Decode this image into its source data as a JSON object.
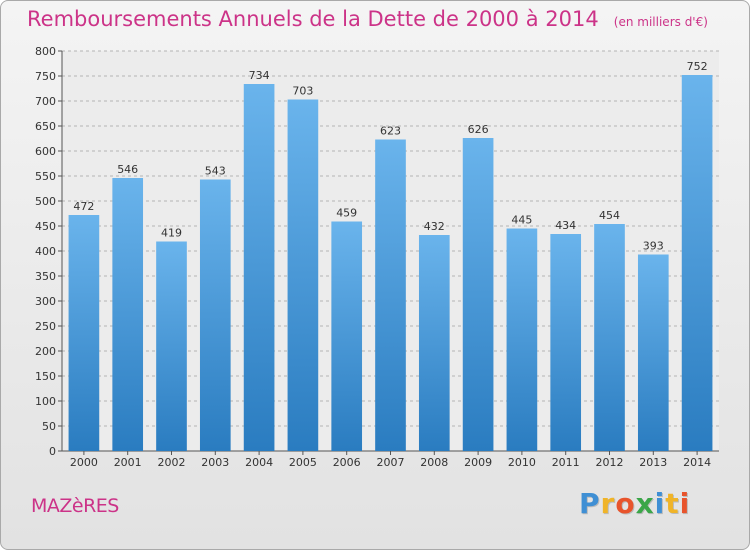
{
  "chart_data": {
    "type": "bar",
    "title": "Remboursements Annuels de la Dette de 2000 à 2014",
    "subtitle": "(en milliers d'€)",
    "categories": [
      "2000",
      "2001",
      "2002",
      "2003",
      "2004",
      "2005",
      "2006",
      "2007",
      "2008",
      "2009",
      "2010",
      "2011",
      "2012",
      "2013",
      "2014"
    ],
    "values": [
      472,
      546,
      419,
      543,
      734,
      703,
      459,
      623,
      432,
      626,
      445,
      434,
      454,
      393,
      752
    ],
    "ylim": [
      0,
      800
    ],
    "yticks": [
      0,
      50,
      100,
      150,
      200,
      250,
      300,
      350,
      400,
      450,
      500,
      550,
      600,
      650,
      700,
      750,
      800
    ],
    "grid": true,
    "bar_color_top": "#6ab4ec",
    "bar_color_bottom": "#2a7cc0",
    "title_color": "#cc3388"
  },
  "footer": {
    "commune": "MAZèRES",
    "brand_letters": [
      {
        "char": "P",
        "color": "#3f8fd4"
      },
      {
        "char": "r",
        "color": "#f0b428"
      },
      {
        "char": "o",
        "color": "#e8542c"
      },
      {
        "char": "x",
        "color": "#3aa648"
      },
      {
        "char": "i",
        "color": "#3f8fd4"
      },
      {
        "char": "t",
        "color": "#f0b428"
      },
      {
        "char": "i",
        "color": "#e8542c"
      }
    ]
  }
}
